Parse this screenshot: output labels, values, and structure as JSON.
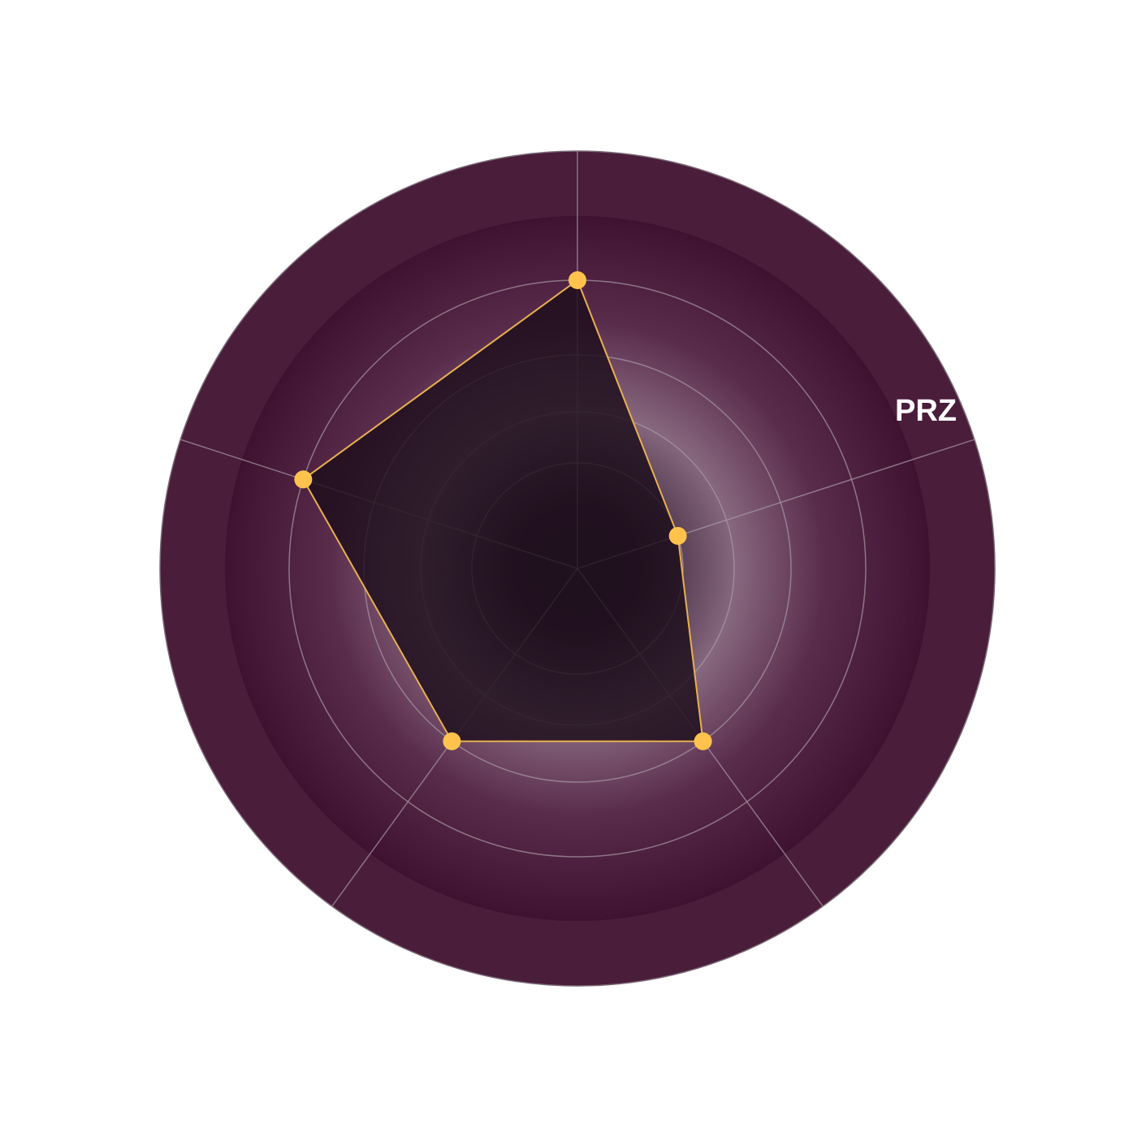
{
  "chart_data": {
    "type": "radar",
    "title": "",
    "axes": [
      "PRZ",
      "",
      "",
      "",
      ""
    ],
    "visible_axis_labels": [
      "PRZ"
    ],
    "radial_levels": [
      1,
      2,
      3,
      4,
      5,
      6
    ],
    "radial_range": [
      0,
      6
    ],
    "grid": true,
    "series": [
      {
        "values": [
          4,
          1,
          3,
          3,
          4
        ]
      }
    ],
    "colors": {
      "outer_band": "#4a1d3b",
      "middle_band": "#3e1230",
      "glow": "#8a6a80",
      "center": "#2f2233",
      "polygon_fill": "#1c0d1b",
      "polygon_stroke": "#e8b04f",
      "point": "#ffc34d",
      "grid": "#a89aa4",
      "label": "#ffffff"
    }
  }
}
